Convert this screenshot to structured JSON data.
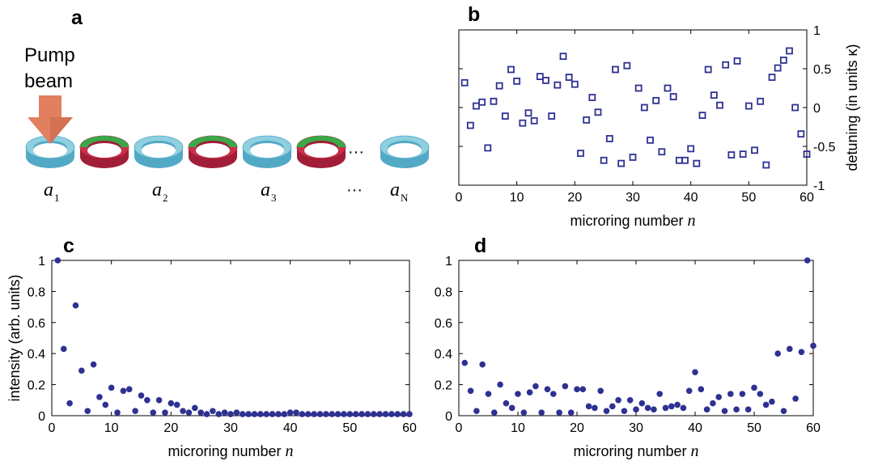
{
  "panel_a": {
    "letter": "a",
    "pump_label_line1": "Pump",
    "pump_label_line2": "beam",
    "ellipsis": "···",
    "ring_colors": [
      "blue",
      "gr",
      "blue",
      "gr",
      "blue",
      "gr",
      "blue"
    ],
    "colors": {
      "blue_top": "#8fcfdf",
      "blue_side": "#52a9c6",
      "green": "#3aa848",
      "red_top": "#cc2f4a",
      "red_side": "#a11e38",
      "pump": "#e27f5f",
      "pump_dark": "#b85a3f"
    },
    "site_labels": [
      {
        "main": "a",
        "sub": "1"
      },
      {
        "main": "a",
        "sub": "2"
      },
      {
        "main": "a",
        "sub": "3"
      },
      {
        "main": "a",
        "sub": "N"
      }
    ],
    "site_ellipsis": "···"
  },
  "marker_color": "#2e3192",
  "chart_data": [
    {
      "panel": "b",
      "type": "scatter",
      "marker": "open-square",
      "xlabel": "microring number",
      "xlabel_var": "n",
      "ylabel": "detuning (in units κ)",
      "y_axis_side": "right",
      "xlim": [
        0,
        60
      ],
      "ylim": [
        -1,
        1
      ],
      "xticks": [
        0,
        10,
        20,
        30,
        40,
        50,
        60
      ],
      "yticks": [
        1,
        0.5,
        0,
        -0.5,
        -1
      ],
      "ytick_labels": [
        "1",
        "0.5",
        "0",
        "-0.5",
        "-1"
      ],
      "x": [
        1,
        2,
        3,
        4,
        5,
        6,
        7,
        8,
        9,
        10,
        11,
        12,
        13,
        14,
        15,
        16,
        17,
        18,
        19,
        20,
        21,
        22,
        23,
        24,
        25,
        26,
        27,
        28,
        29,
        30,
        31,
        32,
        33,
        34,
        35,
        36,
        37,
        38,
        39,
        40,
        41,
        42,
        43,
        44,
        45,
        46,
        47,
        48,
        49,
        50,
        51,
        52,
        53,
        54,
        55,
        56,
        57,
        58,
        59,
        60
      ],
      "y": [
        0.32,
        -0.23,
        0.02,
        0.07,
        -0.52,
        0.08,
        0.28,
        -0.11,
        0.49,
        0.34,
        -0.2,
        -0.07,
        -0.17,
        0.4,
        0.35,
        -0.11,
        0.29,
        0.66,
        0.39,
        0.3,
        -0.59,
        -0.16,
        0.13,
        -0.06,
        -0.68,
        -0.4,
        0.49,
        -0.72,
        0.54,
        -0.64,
        0.25,
        0.0,
        -0.42,
        0.09,
        -0.57,
        0.25,
        0.14,
        -0.68,
        -0.68,
        -0.53,
        -0.72,
        -0.1,
        0.49,
        0.16,
        0.03,
        0.55,
        -0.61,
        0.6,
        -0.6,
        0.02,
        -0.55,
        0.08,
        -0.74,
        0.39,
        0.51,
        0.61,
        0.73,
        0.0,
        -0.34,
        -0.6
      ]
    },
    {
      "panel": "c",
      "type": "scatter",
      "marker": "filled-circle",
      "xlabel": "microring number",
      "xlabel_var": "n",
      "ylabel": "intensity (arb. units)",
      "xlim": [
        0,
        60
      ],
      "ylim": [
        0,
        1
      ],
      "xticks": [
        0,
        10,
        20,
        30,
        40,
        50,
        60
      ],
      "yticks": [
        0,
        0.2,
        0.4,
        0.6,
        0.8,
        1
      ],
      "ytick_labels": [
        "0",
        "0.2",
        "0.4",
        "0.6",
        "0.8",
        "1"
      ],
      "x": [
        1,
        2,
        3,
        4,
        5,
        6,
        7,
        8,
        9,
        10,
        11,
        12,
        13,
        14,
        15,
        16,
        17,
        18,
        19,
        20,
        21,
        22,
        23,
        24,
        25,
        26,
        27,
        28,
        29,
        30,
        31,
        32,
        33,
        34,
        35,
        36,
        37,
        38,
        39,
        40,
        41,
        42,
        43,
        44,
        45,
        46,
        47,
        48,
        49,
        50,
        51,
        52,
        53,
        54,
        55,
        56,
        57,
        58,
        59,
        60
      ],
      "y": [
        1.0,
        0.43,
        0.08,
        0.71,
        0.29,
        0.03,
        0.33,
        0.12,
        0.07,
        0.18,
        0.02,
        0.16,
        0.17,
        0.03,
        0.13,
        0.1,
        0.02,
        0.1,
        0.02,
        0.08,
        0.07,
        0.03,
        0.02,
        0.05,
        0.02,
        0.01,
        0.03,
        0.01,
        0.02,
        0.01,
        0.02,
        0.01,
        0.01,
        0.01,
        0.01,
        0.01,
        0.01,
        0.01,
        0.01,
        0.02,
        0.02,
        0.01,
        0.01,
        0.01,
        0.01,
        0.01,
        0.01,
        0.01,
        0.01,
        0.01,
        0.01,
        0.01,
        0.01,
        0.01,
        0.01,
        0.01,
        0.01,
        0.01,
        0.01,
        0.01
      ]
    },
    {
      "panel": "d",
      "type": "scatter",
      "marker": "filled-circle",
      "xlabel": "microring number",
      "xlabel_var": "n",
      "ylabel": "",
      "xlim": [
        0,
        60
      ],
      "ylim": [
        0,
        1
      ],
      "xticks": [
        0,
        10,
        20,
        30,
        40,
        50,
        60
      ],
      "yticks": [
        0,
        0.2,
        0.4,
        0.6,
        0.8,
        1
      ],
      "ytick_labels": [
        "0",
        "0.2",
        "0.4",
        "0.6",
        "0.8",
        "1"
      ],
      "x": [
        1,
        2,
        3,
        4,
        5,
        6,
        7,
        8,
        9,
        10,
        11,
        12,
        13,
        14,
        15,
        16,
        17,
        18,
        19,
        20,
        21,
        22,
        23,
        24,
        25,
        26,
        27,
        28,
        29,
        30,
        31,
        32,
        33,
        34,
        35,
        36,
        37,
        38,
        39,
        40,
        41,
        42,
        43,
        44,
        45,
        46,
        47,
        48,
        49,
        50,
        51,
        52,
        53,
        54,
        55,
        56,
        57,
        58,
        59,
        60
      ],
      "y": [
        0.34,
        0.16,
        0.03,
        0.33,
        0.14,
        0.02,
        0.2,
        0.08,
        0.05,
        0.14,
        0.02,
        0.15,
        0.19,
        0.02,
        0.17,
        0.14,
        0.02,
        0.19,
        0.02,
        0.17,
        0.17,
        0.06,
        0.05,
        0.16,
        0.03,
        0.06,
        0.1,
        0.03,
        0.1,
        0.04,
        0.08,
        0.05,
        0.04,
        0.14,
        0.05,
        0.06,
        0.07,
        0.05,
        0.16,
        0.28,
        0.17,
        0.04,
        0.08,
        0.12,
        0.03,
        0.14,
        0.04,
        0.14,
        0.04,
        0.18,
        0.14,
        0.07,
        0.09,
        0.4,
        0.03,
        0.43,
        0.11,
        0.41,
        1.0,
        0.45
      ]
    }
  ]
}
